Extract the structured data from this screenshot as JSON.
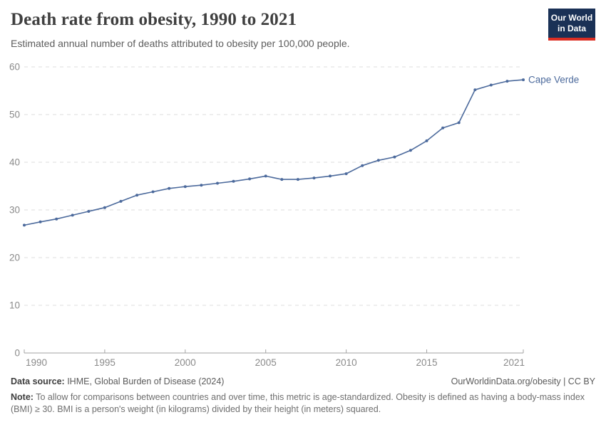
{
  "header": {
    "title": "Death rate from obesity, 1990 to 2021",
    "subtitle": "Estimated annual number of deaths attributed to obesity per 100,000 people.",
    "logo": {
      "line1": "Our World",
      "line2": "in Data"
    }
  },
  "colors": {
    "series": "#4C6A9C",
    "gridline": "#dcdcdc",
    "axis": "#a3a3a3",
    "axis_label": "#8a8a8a",
    "logo_bg": "#1a3156",
    "logo_accent": "#dc2e23"
  },
  "chart_data": {
    "type": "line",
    "title": "Death rate from obesity, 1990 to 2021",
    "xlabel": "",
    "ylabel": "",
    "xlim": [
      1990,
      2021
    ],
    "ylim": [
      0,
      60
    ],
    "x_ticks": [
      1990,
      1995,
      2000,
      2005,
      2010,
      2015,
      2021
    ],
    "y_ticks": [
      0,
      10,
      20,
      30,
      40,
      50,
      60
    ],
    "grid": "horizontal-dashed",
    "legend_position": "end-of-line-label",
    "series": [
      {
        "name": "Cape Verde",
        "x": [
          1990,
          1991,
          1992,
          1993,
          1994,
          1995,
          1996,
          1997,
          1998,
          1999,
          2000,
          2001,
          2002,
          2003,
          2004,
          2005,
          2006,
          2007,
          2008,
          2009,
          2010,
          2011,
          2012,
          2013,
          2014,
          2015,
          2016,
          2017,
          2018,
          2019,
          2020,
          2021
        ],
        "values": [
          26.8,
          27.5,
          28.1,
          28.9,
          29.7,
          30.5,
          31.8,
          33.1,
          33.8,
          34.5,
          34.9,
          35.2,
          35.6,
          36.0,
          36.5,
          37.1,
          36.4,
          36.4,
          36.7,
          37.1,
          37.6,
          39.3,
          40.4,
          41.1,
          42.5,
          44.5,
          47.2,
          48.3,
          55.2,
          56.2,
          57.0,
          57.3
        ]
      }
    ]
  },
  "footer": {
    "datasource_label": "Data source:",
    "datasource_text": " IHME, Global Burden of Disease (2024)",
    "credit": "OurWorldinData.org/obesity | CC BY",
    "note_label": "Note:",
    "note_text": " To allow for comparisons between countries and over time, this metric is age-standardized. Obesity is defined as having a body-mass index (BMI) ≥ 30. BMI is a person's weight (in kilograms) divided by their height (in meters) squared."
  }
}
